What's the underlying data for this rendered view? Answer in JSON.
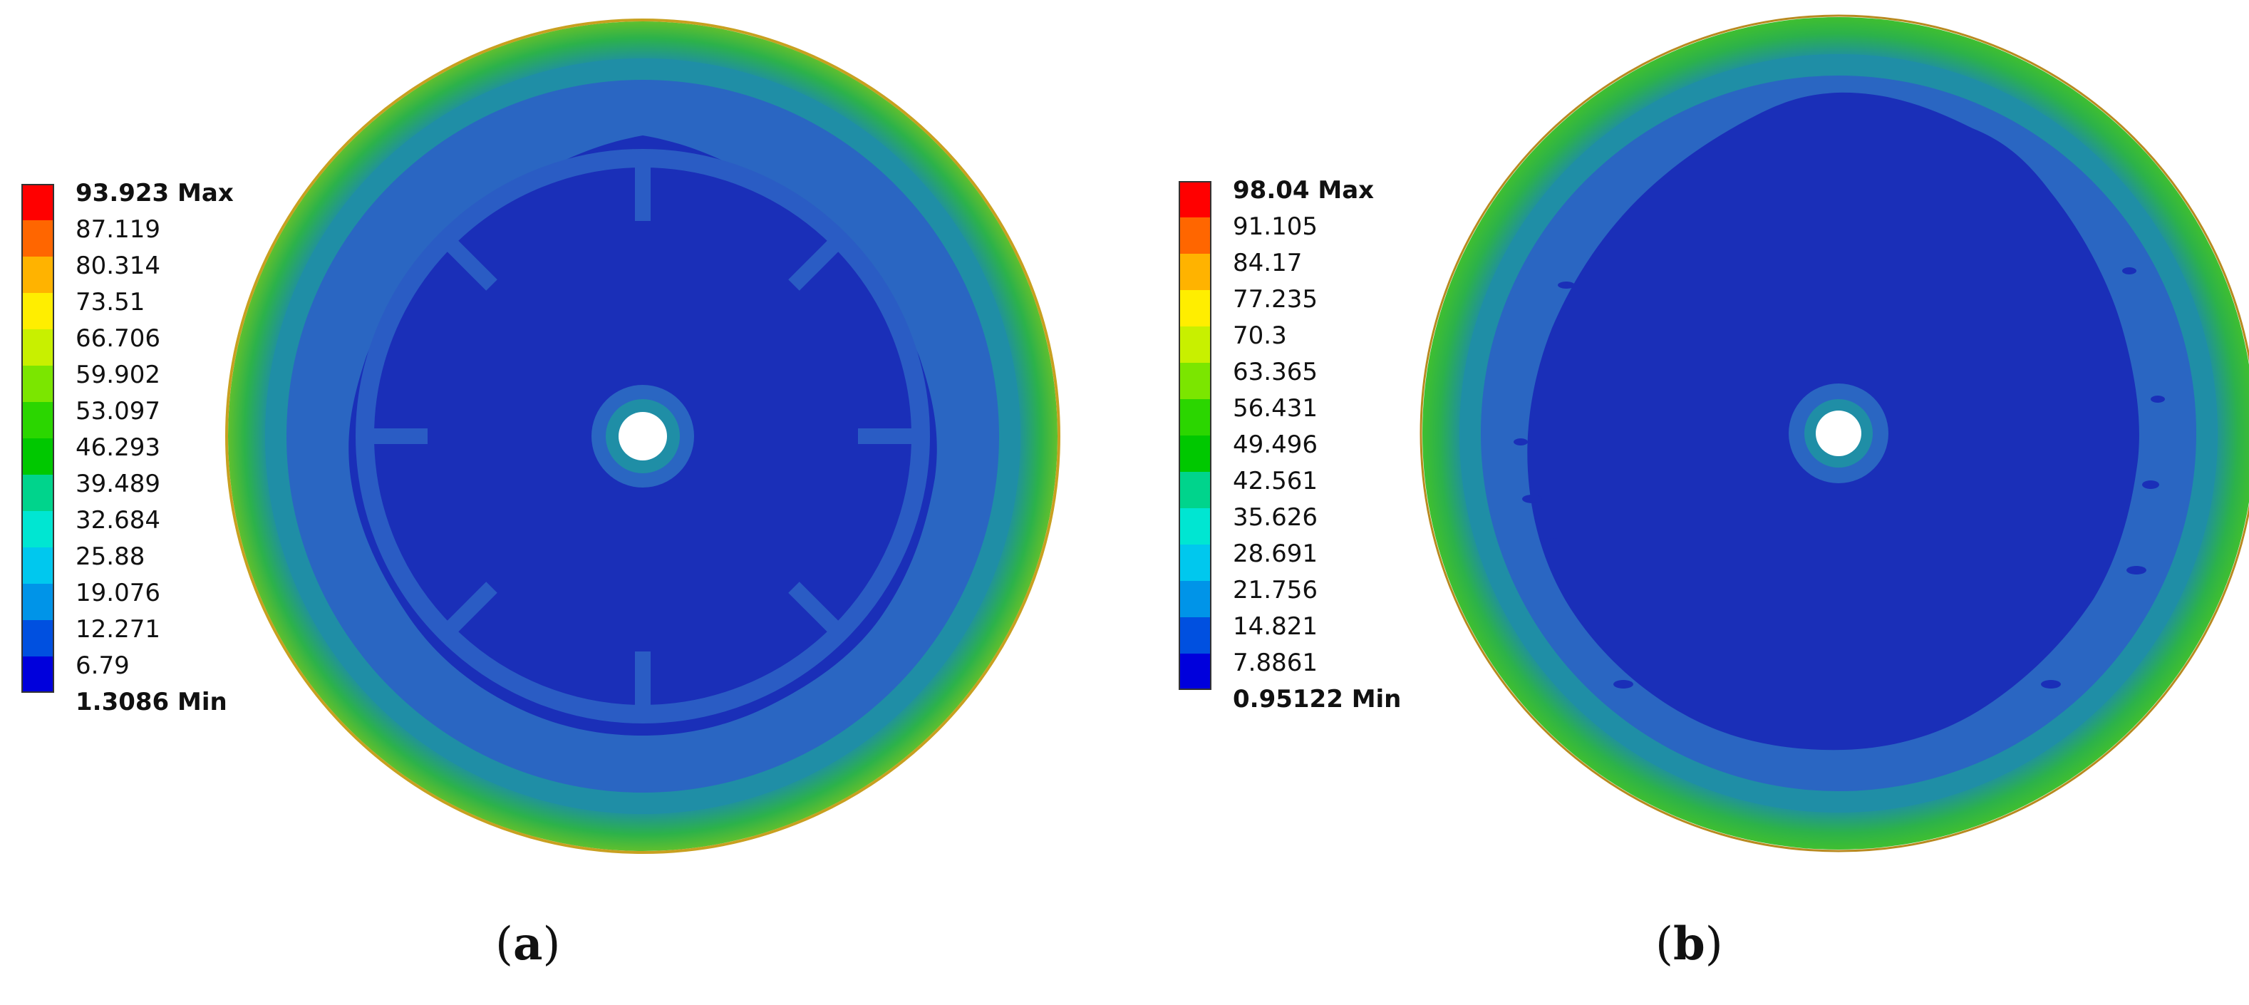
{
  "panels": [
    {
      "id": "a",
      "caption_letter": "a",
      "legend": {
        "labels": [
          "93.923 Max",
          "87.119",
          "80.314",
          "73.51",
          "66.706",
          "59.902",
          "53.097",
          "46.293",
          "39.489",
          "32.684",
          "25.88",
          "19.076",
          "12.271",
          "6.79",
          "1.3086 Min"
        ]
      }
    },
    {
      "id": "b",
      "caption_letter": "b",
      "legend": {
        "labels": [
          "98.04 Max",
          "91.105",
          "84.17",
          "77.235",
          "70.3",
          "63.365",
          "56.431",
          "49.496",
          "42.561",
          "35.626",
          "28.691",
          "21.756",
          "14.821",
          "7.8861",
          "0.95122 Min"
        ]
      }
    }
  ],
  "colors": {
    "scale": [
      "#ff0000",
      "#ff6600",
      "#ffb300",
      "#ffee00",
      "#c8f000",
      "#7be600",
      "#2bd600",
      "#00c800",
      "#00d48c",
      "#00e6d2",
      "#00c8ee",
      "#0094e8",
      "#0050e0",
      "#0000dc"
    ],
    "deep_blue": "#1a2fb8",
    "mid_blue": "#2255c0",
    "teal_ring": "#1f8ea6",
    "outer_green": "#2cb24a",
    "rim_orange": "#d0a020"
  }
}
